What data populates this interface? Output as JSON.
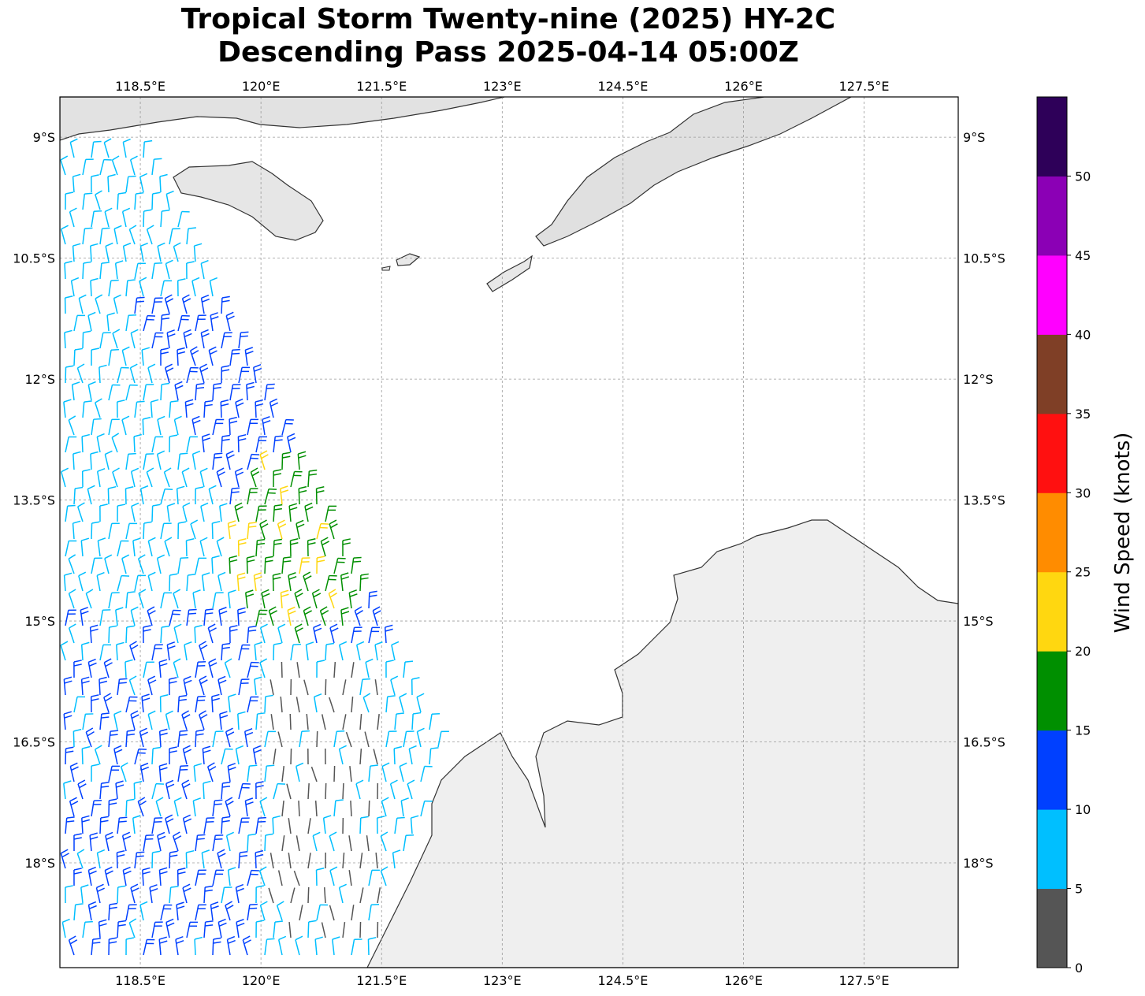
{
  "title": {
    "line1": "Tropical Storm Twenty-nine (2025) HY-2C",
    "line2": "Descending Pass 2025-04-14 05:00Z"
  },
  "map": {
    "extent": {
      "lon_min": 117.5,
      "lon_max": 128.67,
      "lat_min": -19.3,
      "lat_max": -8.5
    },
    "lon_ticks": [
      "118.5°E",
      "120°E",
      "121.5°E",
      "123°E",
      "124.5°E",
      "126°E",
      "127.5°E"
    ],
    "lon_tick_values": [
      118.5,
      120,
      121.5,
      123,
      124.5,
      126,
      127.5
    ],
    "lat_ticks": [
      "9°S",
      "10.5°S",
      "12°S",
      "13.5°S",
      "15°S",
      "16.5°S",
      "18°S"
    ],
    "lat_tick_values": [
      -9,
      -10.5,
      -12,
      -13.5,
      -15,
      -16.5,
      -18
    ],
    "gridlines": true,
    "land_color": "#ececec",
    "coastline_color": "#333333"
  },
  "colorbar": {
    "label": "Wind Speed (knots)",
    "bounds": [
      0,
      5,
      10,
      15,
      20,
      25,
      30,
      35,
      40,
      45,
      50,
      55
    ],
    "tick_labels": [
      "0",
      "5",
      "10",
      "15",
      "20",
      "25",
      "30",
      "35",
      "40",
      "45",
      "50"
    ],
    "colors": [
      "#555555",
      "#00bfff",
      "#0040ff",
      "#008f00",
      "#ffd710",
      "#ff8c00",
      "#ff1010",
      "#7f3f26",
      "#ff00ff",
      "#8b00b5",
      "#2e0059"
    ]
  },
  "wind_barb_field": {
    "swath": "descending pass, western half of map (~117.5°E–122.5°E)",
    "wind_direction": "mostly southeasterly",
    "speed_range_knots": [
      0,
      25
    ],
    "dominant_speeds": "5–15 knots"
  }
}
